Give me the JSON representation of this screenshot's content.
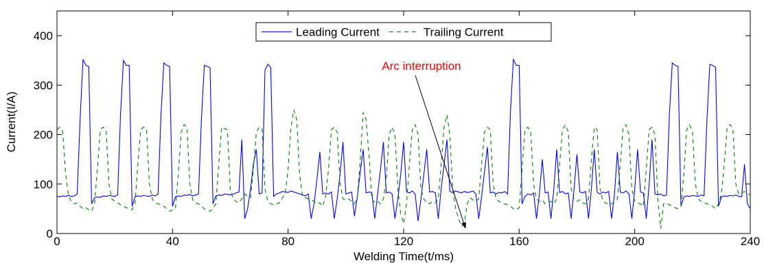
{
  "chart_data": {
    "type": "line",
    "xlabel": "Welding Time(t/ms)",
    "ylabel": "Current(I/A)",
    "annotations": [
      {
        "text": "Arc interruption",
        "color": "#ff0000"
      }
    ],
    "legend": "north",
    "grid": false,
    "xlim": [
      0,
      240
    ],
    "xticks": [
      0,
      40,
      80,
      120,
      160,
      200,
      240
    ],
    "ylim": [
      0,
      450
    ],
    "yticks": [
      0,
      100,
      200,
      300,
      400
    ],
    "x": [
      0,
      1,
      2,
      3,
      4,
      5,
      6,
      7,
      8,
      9,
      10,
      11,
      12,
      13,
      14,
      15,
      16,
      17,
      18,
      19,
      20,
      21,
      22,
      23,
      24,
      25,
      26,
      27,
      28,
      29,
      30,
      31,
      32,
      33,
      34,
      35,
      36,
      37,
      38,
      39,
      40,
      41,
      42,
      43,
      44,
      45,
      46,
      47,
      48,
      49,
      50,
      51,
      52,
      53,
      54,
      55,
      56,
      57,
      58,
      59,
      60,
      61,
      62,
      63,
      64,
      65,
      66,
      67,
      68,
      69,
      70,
      71,
      72,
      73,
      74,
      75,
      76,
      77,
      78,
      79,
      80,
      81,
      82,
      83,
      84,
      85,
      86,
      87,
      88,
      89,
      90,
      91,
      92,
      93,
      94,
      95,
      96,
      97,
      98,
      99,
      100,
      101,
      102,
      103,
      104,
      105,
      106,
      107,
      108,
      109,
      110,
      111,
      112,
      113,
      114,
      115,
      116,
      117,
      118,
      119,
      120,
      121,
      122,
      123,
      124,
      125,
      126,
      127,
      128,
      129,
      130,
      131,
      132,
      133,
      134,
      135,
      136,
      137,
      138,
      139,
      140,
      141,
      142,
      143,
      144,
      145,
      146,
      147,
      148,
      149,
      150,
      151,
      152,
      153,
      154,
      155,
      156,
      157,
      158,
      159,
      160,
      161,
      162,
      163,
      164,
      165,
      166,
      167,
      168,
      169,
      170,
      171,
      172,
      173,
      174,
      175,
      176,
      177,
      178,
      179,
      180,
      181,
      182,
      183,
      184,
      185,
      186,
      187,
      188,
      189,
      190,
      191,
      192,
      193,
      194,
      195,
      196,
      197,
      198,
      199,
      200,
      201,
      202,
      203,
      204,
      205,
      206,
      207,
      208,
      209,
      210,
      211,
      212,
      213,
      214,
      215,
      216,
      217,
      218,
      219,
      220,
      221,
      222,
      223,
      224,
      225,
      226,
      227,
      228,
      229,
      230,
      231,
      232,
      233,
      234,
      235,
      236,
      237,
      238,
      239,
      240
    ],
    "series": [
      {
        "name": "Leading Current",
        "color": "#0000ff",
        "style": "solid",
        "values": [
          75,
          74,
          76,
          75,
          77,
          75,
          76,
          80,
          230,
          352,
          340,
          338,
          60,
          72,
          74,
          73,
          76,
          75,
          77,
          76,
          75,
          78,
          240,
          350,
          340,
          340,
          55,
          74,
          76,
          75,
          77,
          76,
          75,
          78,
          76,
          80,
          240,
          345,
          340,
          338,
          55,
          74,
          76,
          75,
          78,
          77,
          79,
          76,
          78,
          80,
          230,
          340,
          338,
          335,
          60,
          76,
          78,
          77,
          80,
          79,
          78,
          80,
          82,
          84,
          190,
          30,
          50,
          90,
          140,
          170,
          80,
          82,
          330,
          342,
          336,
          75,
          80,
          82,
          85,
          84,
          83,
          86,
          84,
          82,
          80,
          78,
          76,
          80,
          30,
          60,
          110,
          165,
          80,
          82,
          80,
          84,
          30,
          70,
          120,
          185,
          80,
          82,
          84,
          35,
          75,
          125,
          170,
          82,
          84,
          83,
          30,
          80,
          130,
          185,
          82,
          84,
          80,
          30,
          70,
          120,
          185,
          84,
          82,
          86,
          80,
          25,
          70,
          120,
          170,
          84,
          85,
          82,
          30,
          90,
          140,
          190,
          85,
          83,
          86,
          84,
          82,
          85,
          83,
          84,
          86,
          80,
          30,
          75,
          125,
          175,
          82,
          84,
          80,
          83,
          82,
          85,
          80,
          250,
          352,
          340,
          340,
          60,
          75,
          80,
          78,
          82,
          30,
          80,
          150,
          82,
          84,
          30,
          90,
          170,
          83,
          85,
          80,
          82,
          30,
          90,
          160,
          84,
          82,
          85,
          30,
          90,
          170,
          83,
          80,
          84,
          82,
          85,
          30,
          80,
          165,
          84,
          82,
          86,
          80,
          30,
          90,
          170,
          84,
          82,
          30,
          100,
          190,
          80,
          78,
          80,
          76,
          78,
          240,
          345,
          340,
          338,
          55,
          74,
          76,
          75,
          77,
          76,
          75,
          78,
          76,
          230,
          342,
          340,
          336,
          55,
          74,
          76,
          75,
          77,
          76,
          78,
          75,
          74,
          140,
          60,
          50
        ]
      },
      {
        "name": "Trailing Current",
        "color": "#007f00",
        "style": "dashed",
        "values": [
          210,
          215,
          205,
          120,
          75,
          65,
          60,
          62,
          55,
          50,
          52,
          48,
          45,
          60,
          130,
          210,
          215,
          210,
          100,
          70,
          65,
          62,
          58,
          55,
          52,
          50,
          48,
          60,
          140,
          210,
          215,
          212,
          100,
          70,
          62,
          60,
          58,
          55,
          50,
          45,
          48,
          50,
          120,
          205,
          220,
          215,
          100,
          68,
          62,
          60,
          55,
          50,
          48,
          45,
          50,
          60,
          140,
          215,
          212,
          210,
          90,
          70,
          65,
          62,
          70,
          80,
          75,
          72,
          130,
          205,
          215,
          212,
          90,
          65,
          60,
          58,
          60,
          62,
          72,
          80,
          130,
          215,
          250,
          230,
          120,
          75,
          72,
          70,
          68,
          65,
          60,
          62,
          55,
          75,
          130,
          210,
          215,
          205,
          100,
          70,
          68,
          70,
          65,
          60,
          75,
          150,
          245,
          230,
          160,
          70,
          62,
          65,
          60,
          70,
          110,
          200,
          215,
          200,
          90,
          40,
          20,
          60,
          140,
          210,
          220,
          200,
          90,
          70,
          62,
          60,
          65,
          62,
          70,
          140,
          215,
          240,
          200,
          90,
          50,
          30,
          15,
          20,
          60,
          72,
          68,
          65,
          70,
          140,
          205,
          215,
          210,
          100,
          70,
          65,
          62,
          60,
          58,
          55,
          50,
          48,
          52,
          130,
          210,
          215,
          205,
          100,
          70,
          65,
          68,
          60,
          62,
          65,
          60,
          70,
          140,
          210,
          220,
          205,
          90,
          70,
          65,
          68,
          62,
          60,
          70,
          150,
          215,
          210,
          90,
          65,
          62,
          58,
          60,
          65,
          70,
          140,
          215,
          220,
          200,
          90,
          65,
          62,
          60,
          55,
          130,
          210,
          215,
          200,
          70,
          10,
          60,
          62,
          58,
          55,
          52,
          50,
          55,
          120,
          210,
          220,
          205,
          100,
          70,
          65,
          62,
          60,
          58,
          55,
          50,
          60,
          80,
          140,
          215,
          220,
          212,
          100,
          80,
          82,
          85,
          80,
          78
        ]
      }
    ]
  }
}
